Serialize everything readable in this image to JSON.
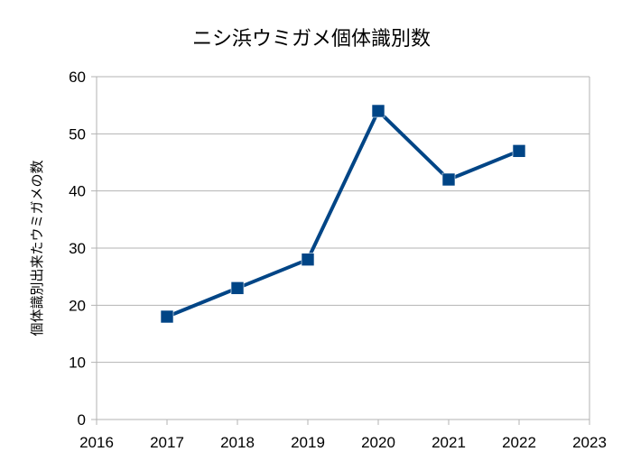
{
  "chart_data": {
    "type": "line",
    "title": "ニシ浜ウミガメ個体識別数",
    "xlabel": "",
    "ylabel": "個体識別出来たウミガメの数",
    "x": [
      2017,
      2018,
      2019,
      2020,
      2021,
      2022
    ],
    "series": [
      {
        "values": [
          18,
          23,
          28,
          54,
          42,
          47
        ],
        "color": "#004586",
        "marker": "square"
      }
    ],
    "xlim": [
      2016,
      2023
    ],
    "ylim": [
      0,
      60
    ],
    "x_ticks": [
      "2016",
      "2017",
      "2018",
      "2019",
      "2020",
      "2021",
      "2022",
      "2023"
    ],
    "y_ticks": [
      "0",
      "10",
      "20",
      "30",
      "40",
      "50",
      "60"
    ],
    "grid": "horizontal",
    "legend": "none"
  }
}
